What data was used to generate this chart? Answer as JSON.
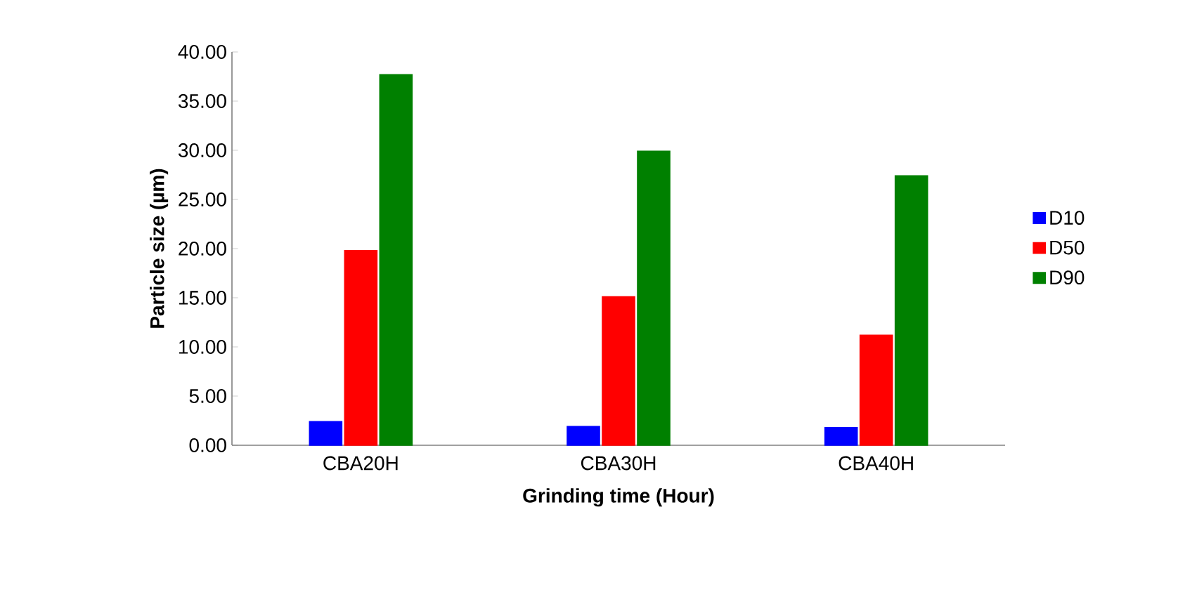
{
  "chart_data": {
    "type": "bar",
    "xlabel": "Grinding time (Hour)",
    "ylabel": "Particle size (µm)",
    "categories": [
      "CBA20H",
      "CBA30H",
      "CBA40H"
    ],
    "series": [
      {
        "name": "D10",
        "color": "#0000ff",
        "values": [
          2.4,
          1.9,
          1.8
        ]
      },
      {
        "name": "D50",
        "color": "#ff0000",
        "values": [
          19.8,
          15.1,
          11.2
        ]
      },
      {
        "name": "D90",
        "color": "#008000",
        "values": [
          37.7,
          29.9,
          27.4
        ]
      }
    ],
    "ylim": [
      0,
      40
    ],
    "yticks": [
      {
        "value": 0,
        "label": "0.00"
      },
      {
        "value": 5,
        "label": "5.00"
      },
      {
        "value": 10,
        "label": "10.00"
      },
      {
        "value": 15,
        "label": "15.00"
      },
      {
        "value": 20,
        "label": "20.00"
      },
      {
        "value": 25,
        "label": "25.00"
      },
      {
        "value": 30,
        "label": "30.00"
      },
      {
        "value": 35,
        "label": "35.00"
      },
      {
        "value": 40,
        "label": "40.00"
      }
    ],
    "grid": false,
    "legend": "right"
  }
}
